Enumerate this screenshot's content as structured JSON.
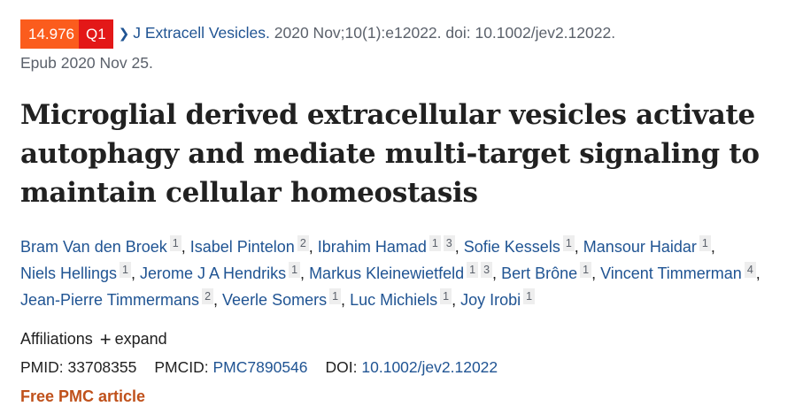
{
  "citation": {
    "impact_factor": "14.976",
    "quartile": "Q1",
    "journal": "J Extracell Vesicles.",
    "details": " 2020 Nov;10(1):e12022. doi: 10.1002/jev2.12022.",
    "epub": "Epub 2020 Nov 25."
  },
  "title": "Microglial derived extracellular vesicles activate autophagy and mediate multi-target signaling to maintain cellular homeostasis",
  "authors": [
    {
      "name": "Bram Van den Broek",
      "aff": [
        "1"
      ]
    },
    {
      "name": "Isabel Pintelon",
      "aff": [
        "2"
      ]
    },
    {
      "name": "Ibrahim Hamad",
      "aff": [
        "1",
        "3"
      ]
    },
    {
      "name": "Sofie Kessels",
      "aff": [
        "1"
      ]
    },
    {
      "name": "Mansour Haidar",
      "aff": [
        "1"
      ]
    },
    {
      "name": "Niels Hellings",
      "aff": [
        "1"
      ]
    },
    {
      "name": "Jerome J A Hendriks",
      "aff": [
        "1"
      ]
    },
    {
      "name": "Markus Kleinewietfeld",
      "aff": [
        "1",
        "3"
      ]
    },
    {
      "name": "Bert Brône",
      "aff": [
        "1"
      ]
    },
    {
      "name": "Vincent Timmerman",
      "aff": [
        "4"
      ]
    },
    {
      "name": "Jean-Pierre Timmermans",
      "aff": [
        "2"
      ]
    },
    {
      "name": "Veerle Somers",
      "aff": [
        "1"
      ]
    },
    {
      "name": "Luc Michiels",
      "aff": [
        "1"
      ]
    },
    {
      "name": "Joy Irobi",
      "aff": [
        "1"
      ]
    }
  ],
  "affiliations": {
    "label": "Affiliations",
    "toggle": "expand",
    "icon": "plus-icon"
  },
  "ids": {
    "pmid_label": "PMID:",
    "pmid": "33708355",
    "pmcid_label": "PMCID:",
    "pmcid": "PMC7890546",
    "doi_label": "DOI:",
    "doi": "10.1002/jev2.12022"
  },
  "free_label": "Free PMC article",
  "colors": {
    "link": "#205493",
    "if_badge": "#fb5c1d",
    "q_badge": "#e31818",
    "free": "#c0511b"
  }
}
